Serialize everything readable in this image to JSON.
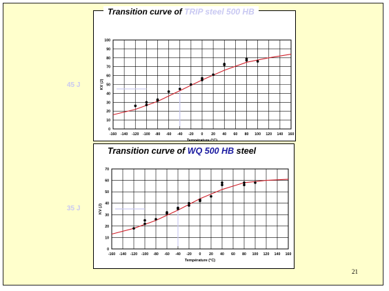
{
  "page_number": "21",
  "chart_data": [
    {
      "type": "scatter",
      "title_prefix": "Transition curve of ",
      "title_highlight": "TRIP steel 500 HB",
      "title_suffix": "",
      "xlabel": "Température (°C)",
      "ylabel": "KV (J)",
      "xlim": [
        -160,
        160
      ],
      "ylim": [
        0,
        100
      ],
      "xticks": [
        "-160",
        "-140",
        "-120",
        "-100",
        "-80",
        "-60",
        "-40",
        "-20",
        "0",
        "20",
        "40",
        "60",
        "80",
        "100",
        "120",
        "140",
        "160"
      ],
      "yticks": [
        "0",
        "10",
        "20",
        "30",
        "40",
        "50",
        "60",
        "70",
        "80",
        "90",
        "100"
      ],
      "grid": true,
      "side_label": "45 J",
      "series": [
        {
          "points": [
            [
              -120,
              26
            ],
            [
              -100,
              27
            ],
            [
              -100,
              30
            ],
            [
              -80,
              32
            ],
            [
              -80,
              33
            ],
            [
              -60,
              42
            ],
            [
              -40,
              45
            ],
            [
              -20,
              50
            ],
            [
              0,
              55
            ],
            [
              0,
              57
            ],
            [
              20,
              61
            ],
            [
              40,
              72
            ],
            [
              40,
              73
            ],
            [
              80,
              77
            ],
            [
              80,
              79
            ],
            [
              100,
              76
            ]
          ]
        },
        {
          "curve": [
            [
              -160,
              16
            ],
            [
              -120,
              22
            ],
            [
              -80,
              31
            ],
            [
              -40,
              43
            ],
            [
              0,
              55
            ],
            [
              40,
              66
            ],
            [
              80,
              75
            ],
            [
              120,
              80
            ],
            [
              160,
              84
            ]
          ]
        }
      ],
      "colors": {
        "points": "#000000",
        "curve": "#d0202a",
        "marker_line": "#c9c9f2"
      }
    },
    {
      "type": "scatter",
      "title_prefix": "Transition curve of  ",
      "title_highlight": "WQ 500 HB",
      "title_suffix": " steel",
      "xlabel": "Température (°C)",
      "ylabel": "KV (J)",
      "xlim": [
        -160,
        160
      ],
      "ylim": [
        0,
        70
      ],
      "xticks": [
        "-160",
        "-140",
        "-120",
        "-100",
        "-80",
        "-60",
        "-40",
        "-20",
        "0",
        "20",
        "40",
        "60",
        "80",
        "100",
        "120",
        "140",
        "160"
      ],
      "yticks": [
        "0",
        "10",
        "20",
        "30",
        "40",
        "50",
        "60",
        "70"
      ],
      "grid": true,
      "side_label": "35 J",
      "series": [
        {
          "points": [
            [
              -120,
              18
            ],
            [
              -100,
              22
            ],
            [
              -100,
              25
            ],
            [
              -80,
              26
            ],
            [
              -60,
              31
            ],
            [
              -60,
              32
            ],
            [
              -40,
              35
            ],
            [
              -40,
              36
            ],
            [
              -20,
              38
            ],
            [
              -20,
              40
            ],
            [
              0,
              42
            ],
            [
              0,
              43
            ],
            [
              20,
              46
            ],
            [
              40,
              56
            ],
            [
              40,
              58
            ],
            [
              80,
              56
            ],
            [
              80,
              58
            ],
            [
              100,
              58
            ]
          ]
        },
        {
          "curve": [
            [
              -160,
              13
            ],
            [
              -120,
              18
            ],
            [
              -80,
              25
            ],
            [
              -40,
              34
            ],
            [
              0,
              44
            ],
            [
              40,
              52
            ],
            [
              80,
              58
            ],
            [
              120,
              60
            ],
            [
              160,
              61
            ]
          ]
        }
      ],
      "colors": {
        "points": "#000000",
        "curve": "#d0202a",
        "marker_line": "#c9c9f2"
      }
    }
  ]
}
